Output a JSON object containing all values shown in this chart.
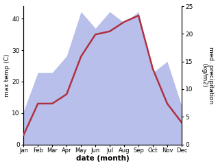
{
  "months": [
    "Jan",
    "Feb",
    "Mar",
    "Apr",
    "May",
    "Jun",
    "Jul",
    "Aug",
    "Sep",
    "Oct",
    "Nov",
    "Dec"
  ],
  "month_indices": [
    1,
    2,
    3,
    4,
    5,
    6,
    7,
    8,
    9,
    10,
    11,
    12
  ],
  "max_temp": [
    3,
    13,
    13,
    16,
    28,
    35,
    36,
    39,
    41,
    24,
    13,
    7
  ],
  "precipitation": [
    6,
    13,
    13,
    16,
    24,
    21,
    24,
    22,
    24,
    13,
    15,
    7
  ],
  "temp_color": "#b03040",
  "precip_fill_color": "#b0b8e8",
  "xlabel": "date (month)",
  "ylabel_left": "max temp (C)",
  "ylabel_right": "med. precipitation\n(kg/m2)",
  "ylim_left": [
    0,
    44
  ],
  "ylim_right": [
    0,
    25
  ],
  "yticks_left": [
    0,
    10,
    20,
    30,
    40
  ],
  "yticks_right": [
    0,
    5,
    10,
    15,
    20,
    25
  ],
  "background_color": "#ffffff",
  "fig_width": 3.18,
  "fig_height": 2.42,
  "dpi": 100
}
